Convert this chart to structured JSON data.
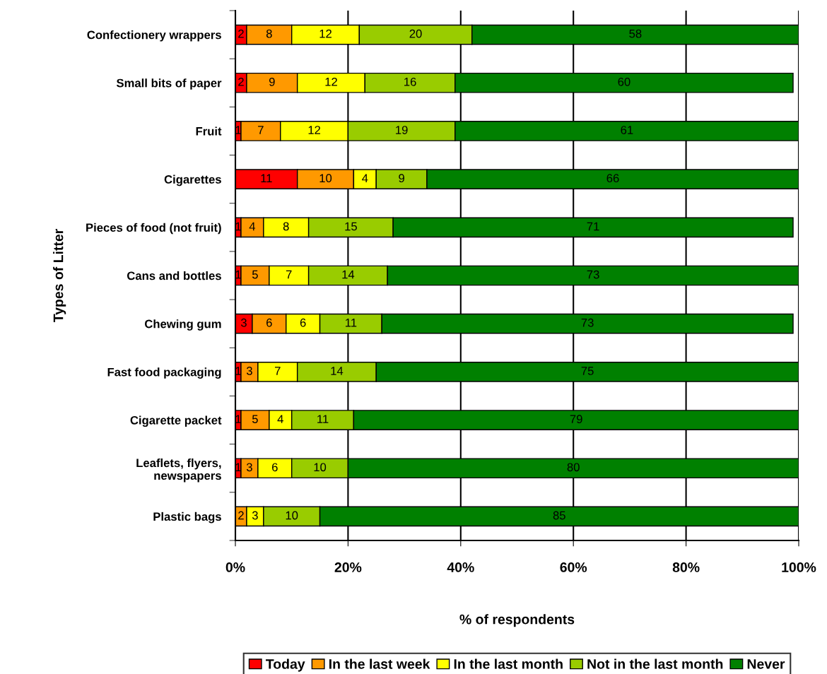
{
  "chart_data": {
    "type": "bar",
    "orientation": "horizontal",
    "stacked": true,
    "xlabel": "% of respondents",
    "ylabel": "Types of Litter",
    "categories": [
      "Confectionery wrappers",
      "Small bits of paper",
      "Fruit",
      "Cigarettes",
      "Pieces of food (not fruit)",
      "Cans and bottles",
      "Chewing gum",
      "Fast food packaging",
      "Cigarette packet",
      "Leaflets, flyers,\nnewspapers",
      "Plastic bags"
    ],
    "series": [
      {
        "name": "Today",
        "color": "#ff0000",
        "values": [
          2,
          2,
          1,
          11,
          1,
          1,
          3,
          1,
          1,
          1,
          0
        ],
        "value_labels": [
          "2",
          "2",
          "1",
          "11",
          "1",
          "1",
          "3",
          "1",
          "1",
          "1",
          null
        ]
      },
      {
        "name": "In the last week",
        "color": "#ff9900",
        "values": [
          8,
          9,
          7,
          10,
          4,
          5,
          6,
          3,
          5,
          3,
          2
        ],
        "value_labels": [
          "8",
          "9",
          "7",
          "10",
          "4",
          "5",
          "6",
          "3",
          "5",
          "3",
          "2"
        ]
      },
      {
        "name": "In the last month",
        "color": "#ffff00",
        "values": [
          12,
          12,
          12,
          4,
          8,
          7,
          6,
          7,
          4,
          6,
          3
        ],
        "value_labels": [
          "12",
          "12",
          "12",
          "4",
          "8",
          "7",
          "6",
          "7",
          "4",
          "6",
          "3"
        ]
      },
      {
        "name": "Not in the last month",
        "color": "#99cc00",
        "values": [
          20,
          16,
          19,
          9,
          15,
          14,
          11,
          14,
          11,
          10,
          10
        ],
        "value_labels": [
          "20",
          "16",
          "19",
          "9",
          "15",
          "14",
          "11",
          "14",
          "11",
          "10",
          "10"
        ]
      },
      {
        "name": "Never",
        "color": "#008000",
        "values": [
          58,
          60,
          61,
          66,
          71,
          73,
          73,
          75,
          79,
          80,
          85
        ],
        "value_labels": [
          "58",
          "60",
          "61",
          "66",
          "71",
          "73",
          "73",
          "75",
          "79",
          "80",
          "85"
        ]
      }
    ],
    "xlim": [
      0,
      100
    ],
    "xticks": [
      {
        "value": 0,
        "label": "0%"
      },
      {
        "value": 20,
        "label": "20%"
      },
      {
        "value": 40,
        "label": "40%"
      },
      {
        "value": 60,
        "label": "60%"
      },
      {
        "value": 80,
        "label": "80%"
      },
      {
        "value": 100,
        "label": "100%"
      }
    ],
    "grid": "x",
    "legend": "bottom"
  }
}
